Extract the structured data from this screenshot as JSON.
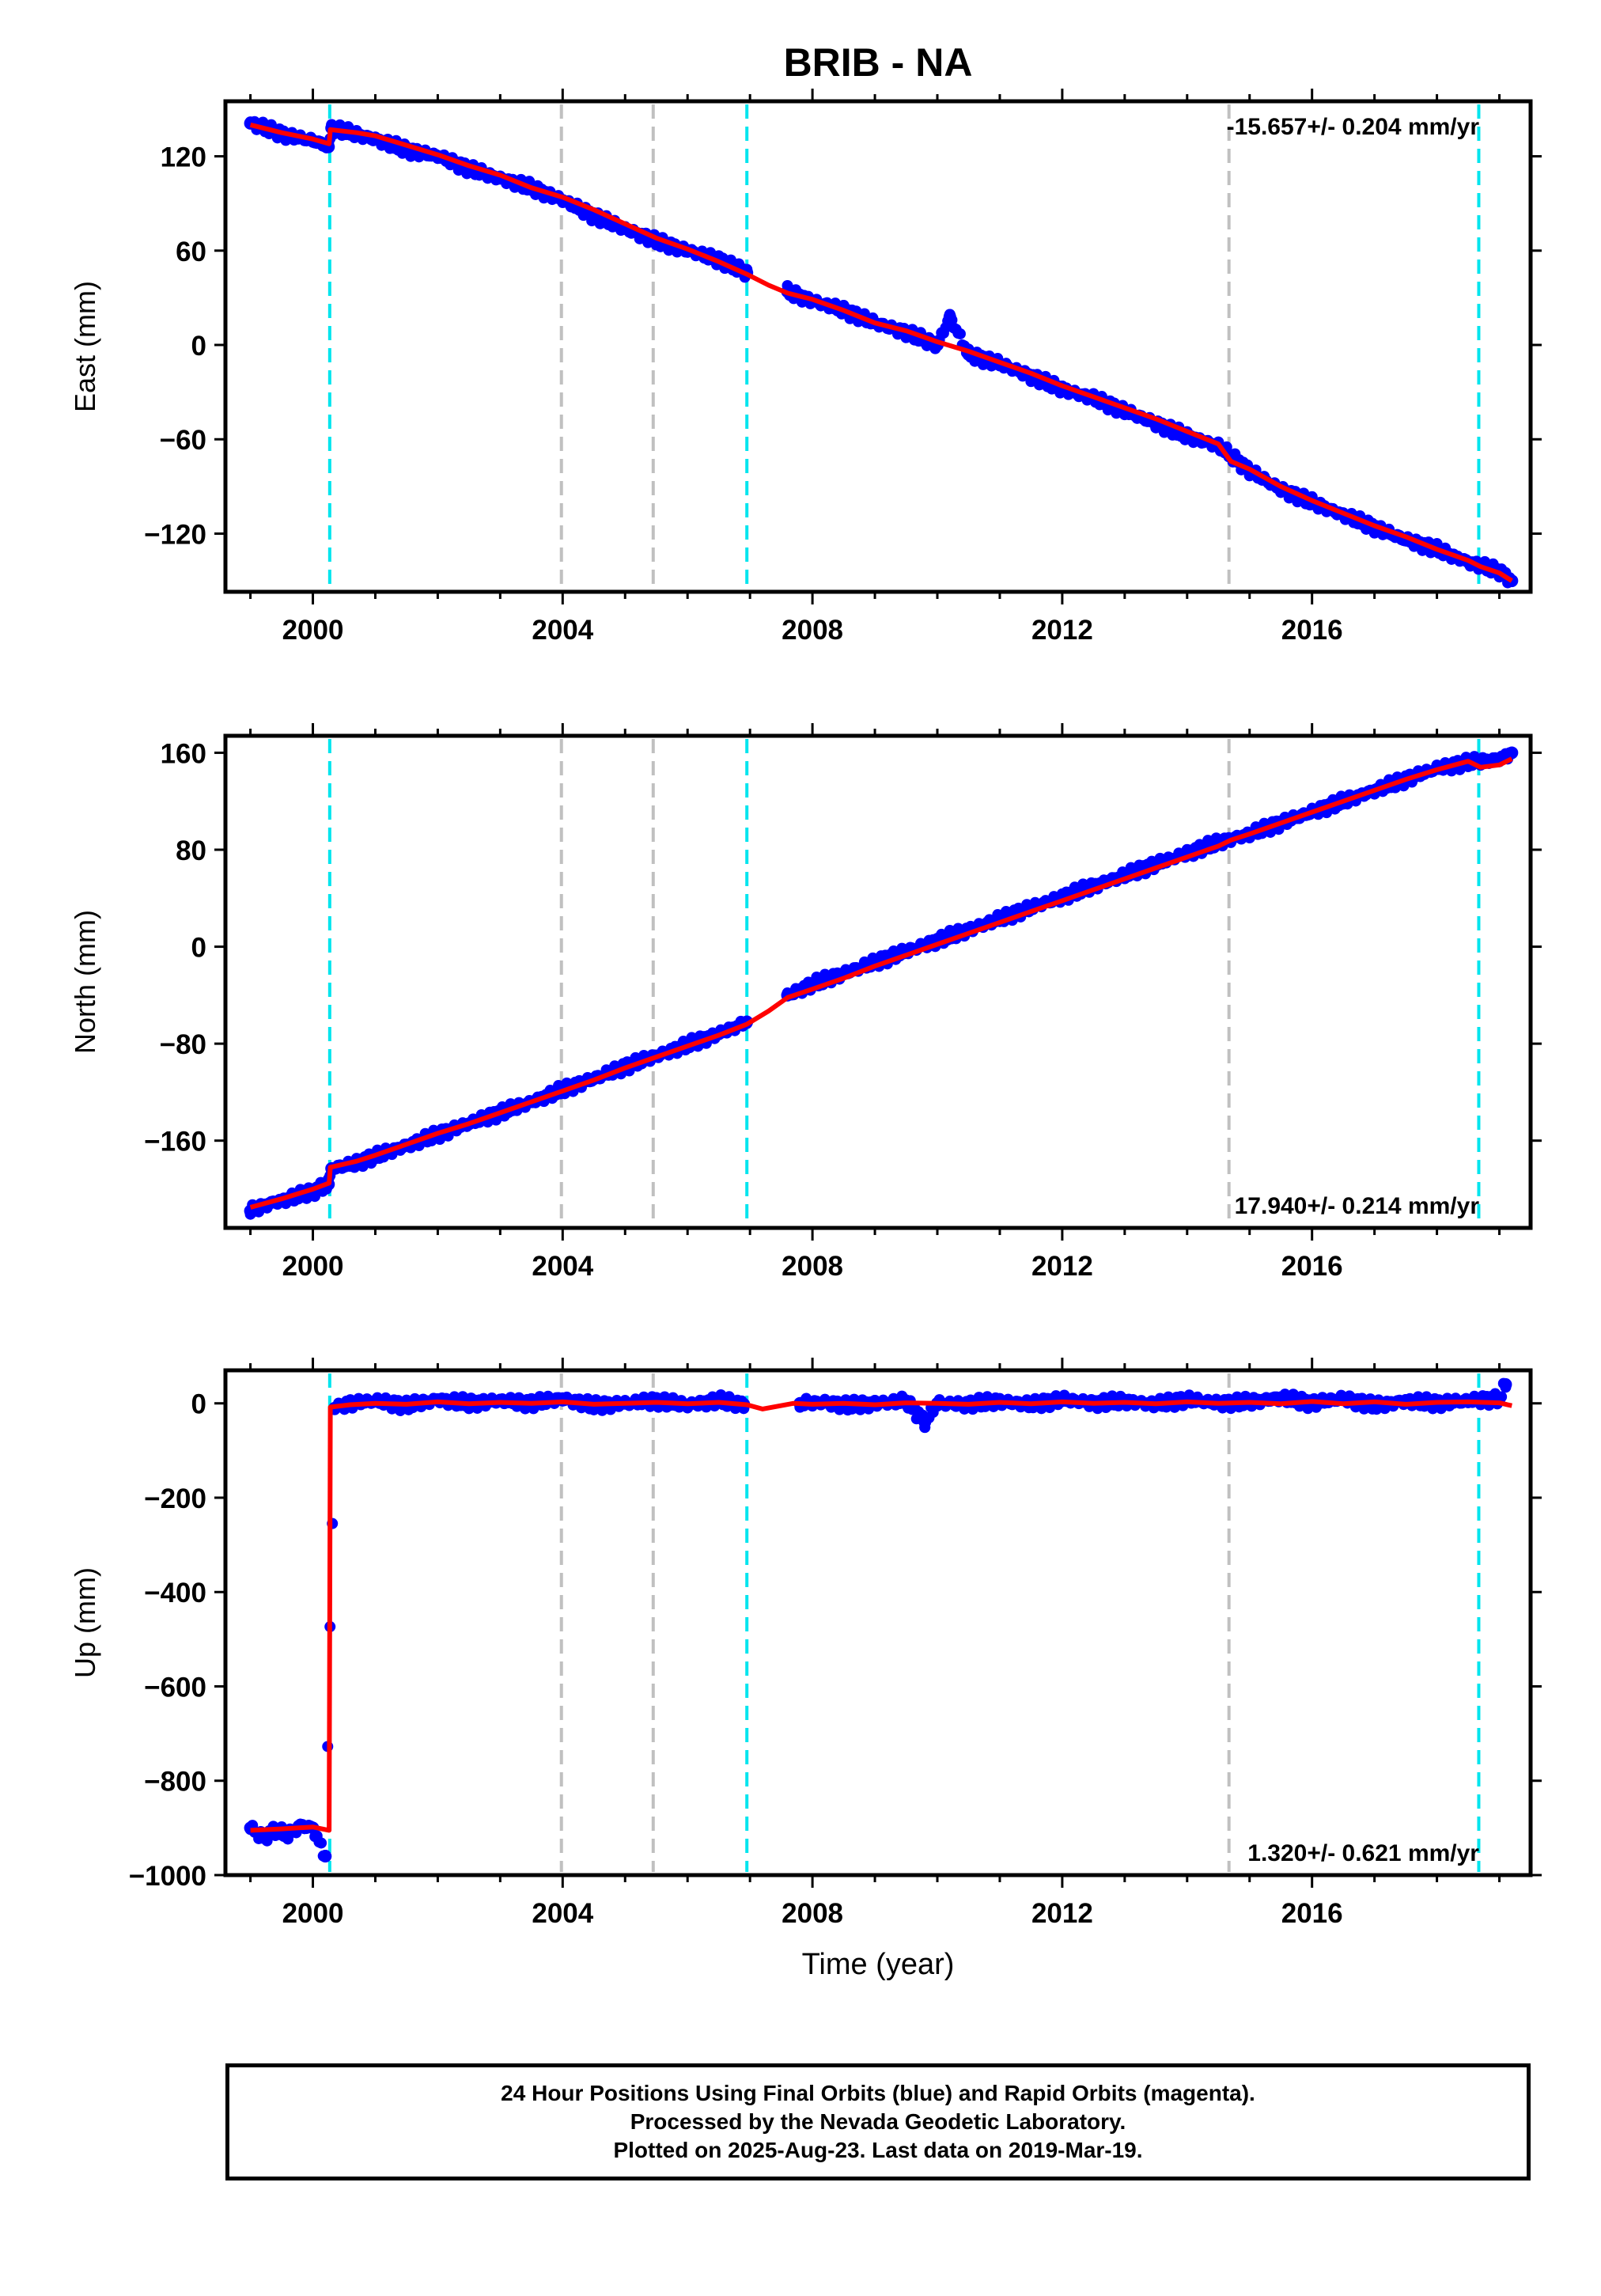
{
  "title": "BRIB - NA",
  "xlabel": "Time (year)",
  "footer": {
    "line1": "24 Hour Positions Using Final Orbits (blue) and Rapid Orbits (magenta).",
    "line2": "Processed by the Nevada Geodetic Laboratory.",
    "line3": "Plotted on 2025-Aug-23. Last data on 2019-Mar-19."
  },
  "colors": {
    "data": "#0000ff",
    "model": "#ff0000",
    "equipment_change": "#00e5ee",
    "other_event": "#c0c0c0"
  },
  "chart_data": [
    {
      "type": "scatter",
      "component": "East",
      "ylabel": "East (mm)",
      "rate_text": "-15.657+/- 0.204 mm/yr",
      "rate_position": "top-right",
      "xlim": [
        1998.6,
        2019.5
      ],
      "ylim": [
        -157,
        155
      ],
      "yticks": [
        -120,
        -60,
        0,
        60,
        120
      ],
      "xticks": [
        2000,
        2004,
        2008,
        2012,
        2016
      ],
      "grid": false,
      "events": [
        {
          "x": 2000.27,
          "kind": "equipment_change"
        },
        {
          "x": 2003.98,
          "kind": "other_event"
        },
        {
          "x": 2005.45,
          "kind": "other_event"
        },
        {
          "x": 2006.95,
          "kind": "equipment_change"
        },
        {
          "x": 2014.67,
          "kind": "other_event"
        },
        {
          "x": 2018.67,
          "kind": "equipment_change"
        }
      ],
      "series": [
        {
          "name": "Final Orbits",
          "style": "points",
          "color": "#0000ff",
          "x": [
            1999.0,
            1999.3,
            1999.6,
            2000.0,
            2000.25,
            2000.3,
            2000.6,
            2001.0,
            2001.5,
            2002.0,
            2002.5,
            2003.0,
            2003.5,
            2004.0,
            2004.5,
            2005.0,
            2005.5,
            2006.0,
            2006.5,
            2006.95,
            2007.6,
            2008.0,
            2008.5,
            2009.0,
            2009.5,
            2010.0,
            2010.2,
            2010.5,
            2011.0,
            2011.5,
            2012.0,
            2012.5,
            2013.0,
            2013.5,
            2014.0,
            2014.5,
            2015.0,
            2015.5,
            2016.0,
            2016.5,
            2017.0,
            2017.5,
            2018.0,
            2018.5,
            2019.0,
            2019.2
          ],
          "y": [
            141,
            137,
            133,
            130,
            126,
            138,
            135,
            131,
            124,
            120,
            112,
            106,
            100,
            92,
            82,
            74,
            66,
            60,
            54,
            46,
            34,
            28,
            22,
            14,
            8,
            0,
            18,
            -6,
            -12,
            -20,
            -28,
            -34,
            -42,
            -50,
            -58,
            -64,
            -80,
            -92,
            -100,
            -108,
            -116,
            -124,
            -130,
            -138,
            -144,
            -150
          ]
        },
        {
          "name": "Model",
          "style": "line",
          "color": "#ff0000",
          "x": [
            1999.0,
            1999.5,
            2000.0,
            2000.26,
            2000.28,
            2000.7,
            2001.0,
            2001.5,
            2002.0,
            2002.5,
            2003.0,
            2003.5,
            2004.0,
            2004.5,
            2005.0,
            2005.5,
            2006.0,
            2006.5,
            2006.95,
            2007.3,
            2007.6,
            2008.0,
            2008.5,
            2009.0,
            2009.5,
            2010.0,
            2010.5,
            2011.0,
            2011.5,
            2012.0,
            2012.5,
            2013.0,
            2013.5,
            2014.0,
            2014.5,
            2014.7,
            2015.0,
            2015.5,
            2016.0,
            2016.5,
            2017.0,
            2017.5,
            2018.0,
            2018.5,
            2018.7,
            2019.0,
            2019.2
          ],
          "y": [
            140,
            135,
            131,
            128,
            137,
            135,
            133,
            127,
            121,
            114,
            108,
            100,
            94,
            86,
            77,
            68,
            61,
            53,
            45,
            38,
            33,
            29,
            22,
            14,
            9,
            2,
            -4,
            -11,
            -18,
            -26,
            -33,
            -40,
            -47,
            -55,
            -63,
            -74,
            -79,
            -90,
            -99,
            -107,
            -115,
            -122,
            -130,
            -137,
            -141,
            -145,
            -150
          ]
        }
      ]
    },
    {
      "type": "scatter",
      "component": "North",
      "ylabel": "North (mm)",
      "rate_text": "17.940+/- 0.214 mm/yr",
      "rate_position": "bottom-right",
      "xlim": [
        1998.6,
        2019.5
      ],
      "ylim": [
        -232,
        174
      ],
      "yticks": [
        -160,
        -80,
        0,
        80,
        160
      ],
      "xticks": [
        2000,
        2004,
        2008,
        2012,
        2016
      ],
      "grid": false,
      "events": [
        {
          "x": 2000.27,
          "kind": "equipment_change"
        },
        {
          "x": 2003.98,
          "kind": "other_event"
        },
        {
          "x": 2005.45,
          "kind": "other_event"
        },
        {
          "x": 2006.95,
          "kind": "equipment_change"
        },
        {
          "x": 2014.67,
          "kind": "other_event"
        },
        {
          "x": 2018.67,
          "kind": "equipment_change"
        }
      ],
      "series": [
        {
          "name": "Final Orbits",
          "style": "points",
          "color": "#0000ff",
          "x": [
            1999.0,
            1999.3,
            1999.6,
            2000.0,
            2000.25,
            2000.3,
            2000.6,
            2001.0,
            2001.5,
            2002.0,
            2002.5,
            2003.0,
            2003.5,
            2004.0,
            2004.5,
            2005.0,
            2005.5,
            2006.0,
            2006.5,
            2006.95,
            2007.6,
            2008.0,
            2008.5,
            2009.0,
            2009.5,
            2010.0,
            2010.5,
            2011.0,
            2011.5,
            2012.0,
            2012.5,
            2013.0,
            2013.5,
            2014.0,
            2014.5,
            2015.0,
            2015.5,
            2016.0,
            2016.5,
            2017.0,
            2017.5,
            2018.0,
            2018.5,
            2019.0,
            2019.2
          ],
          "y": [
            -218,
            -212,
            -208,
            -202,
            -196,
            -183,
            -180,
            -173,
            -164,
            -155,
            -146,
            -137,
            -128,
            -118,
            -109,
            -99,
            -90,
            -81,
            -72,
            -62,
            -40,
            -31,
            -22,
            -13,
            -4,
            5,
            14,
            23,
            32,
            41,
            50,
            59,
            68,
            77,
            86,
            93,
            102,
            111,
            120,
            129,
            138,
            147,
            152,
            155,
            160
          ]
        },
        {
          "name": "Model",
          "style": "line",
          "color": "#ff0000",
          "x": [
            1999.0,
            1999.5,
            2000.0,
            2000.26,
            2000.28,
            2000.7,
            2001.0,
            2001.5,
            2002.0,
            2002.5,
            2003.0,
            2003.5,
            2004.0,
            2004.5,
            2005.0,
            2005.5,
            2006.0,
            2006.5,
            2006.95,
            2007.3,
            2007.6,
            2008.0,
            2008.5,
            2009.0,
            2009.5,
            2010.0,
            2010.5,
            2011.0,
            2011.5,
            2012.0,
            2012.5,
            2013.0,
            2013.5,
            2014.0,
            2014.5,
            2014.7,
            2015.0,
            2015.5,
            2016.0,
            2016.5,
            2017.0,
            2017.5,
            2018.0,
            2018.5,
            2018.7,
            2019.0,
            2019.2
          ],
          "y": [
            -215,
            -208,
            -200,
            -195,
            -182,
            -177,
            -172,
            -163,
            -154,
            -146,
            -137,
            -128,
            -119,
            -110,
            -100,
            -91,
            -82,
            -73,
            -64,
            -53,
            -42,
            -35,
            -26,
            -16,
            -7,
            2,
            11,
            20,
            29,
            38,
            47,
            56,
            65,
            74,
            83,
            88,
            93,
            102,
            111,
            120,
            129,
            138,
            146,
            153,
            148,
            150,
            155
          ]
        }
      ]
    },
    {
      "type": "scatter",
      "component": "Up",
      "ylabel": "Up (mm)",
      "rate_text": "1.320+/- 0.621 mm/yr",
      "rate_position": "bottom-right",
      "xlim": [
        1998.6,
        2019.5
      ],
      "ylim": [
        -1000,
        70
      ],
      "yticks": [
        -1000,
        -800,
        -600,
        -400,
        -200,
        0
      ],
      "xticks": [
        2000,
        2004,
        2008,
        2012,
        2016
      ],
      "grid": false,
      "events": [
        {
          "x": 2000.27,
          "kind": "equipment_change"
        },
        {
          "x": 2003.98,
          "kind": "other_event"
        },
        {
          "x": 2005.45,
          "kind": "other_event"
        },
        {
          "x": 2006.95,
          "kind": "equipment_change"
        },
        {
          "x": 2014.67,
          "kind": "other_event"
        },
        {
          "x": 2018.67,
          "kind": "equipment_change"
        }
      ],
      "series": [
        {
          "name": "Final Orbits",
          "style": "points",
          "color": "#0000ff",
          "x": [
            1999.0,
            1999.2,
            1999.4,
            1999.6,
            1999.8,
            2000.0,
            2000.2,
            2000.35,
            2000.6,
            2001.0,
            2001.5,
            2002.0,
            2002.5,
            2003.0,
            2003.5,
            2004.0,
            2004.5,
            2005.0,
            2005.5,
            2006.0,
            2006.5,
            2006.9,
            2007.8,
            2008.2,
            2008.6,
            2009.0,
            2009.5,
            2009.8,
            2010.0,
            2010.5,
            2011.0,
            2011.5,
            2012.0,
            2012.5,
            2013.0,
            2013.5,
            2014.0,
            2014.5,
            2015.0,
            2015.5,
            2016.0,
            2016.5,
            2017.0,
            2017.5,
            2018.0,
            2018.5,
            2019.0,
            2019.1
          ],
          "y": [
            -900,
            -920,
            -905,
            -915,
            -895,
            -900,
            -960,
            -10,
            0,
            5,
            -5,
            8,
            0,
            5,
            0,
            10,
            -5,
            0,
            5,
            -3,
            6,
            -2,
            0,
            2,
            -5,
            0,
            5,
            -40,
            0,
            -2,
            5,
            -3,
            8,
            0,
            5,
            -2,
            8,
            0,
            3,
            12,
            0,
            10,
            -5,
            5,
            0,
            5,
            10,
            40
          ]
        },
        {
          "name": "Model",
          "style": "line",
          "color": "#ff0000",
          "x": [
            1999.0,
            1999.5,
            2000.0,
            2000.26,
            2000.28,
            2000.6,
            2001.0,
            2001.5,
            2002.0,
            2002.5,
            2003.0,
            2003.5,
            2004.0,
            2004.5,
            2005.0,
            2005.5,
            2006.0,
            2006.5,
            2006.95,
            2007.2,
            2007.7,
            2008.0,
            2008.5,
            2009.0,
            2009.5,
            2010.0,
            2010.5,
            2011.0,
            2011.5,
            2012.0,
            2012.5,
            2013.0,
            2013.5,
            2014.0,
            2014.5,
            2015.0,
            2015.5,
            2016.0,
            2016.5,
            2017.0,
            2017.5,
            2018.0,
            2018.5,
            2019.0,
            2019.2
          ],
          "y": [
            -905,
            -902,
            -898,
            -905,
            -8,
            -3,
            0,
            -2,
            3,
            -1,
            2,
            0,
            3,
            -2,
            0,
            2,
            -1,
            2,
            -3,
            -12,
            0,
            -2,
            0,
            -3,
            1,
            0,
            -2,
            2,
            -1,
            3,
            0,
            2,
            -1,
            3,
            0,
            2,
            -1,
            4,
            -1,
            3,
            -2,
            2,
            3,
            1,
            -5
          ]
        }
      ]
    }
  ]
}
